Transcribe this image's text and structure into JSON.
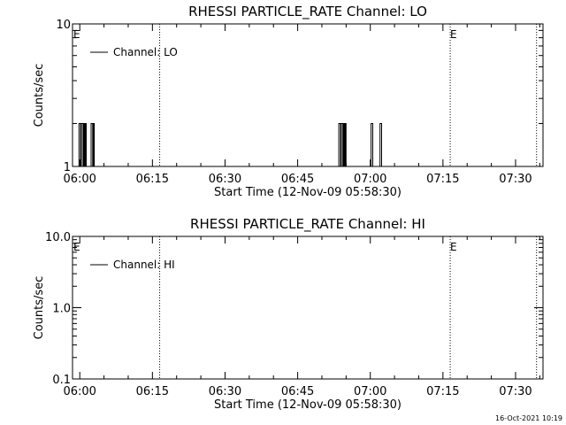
{
  "chart_data": [
    {
      "type": "line",
      "title": "RHESSI PARTICLE_RATE Channel: LO",
      "xlabel": "Start Time (12-Nov-09 05:58:30)",
      "ylabel": "Counts/sec",
      "yscale": "log",
      "xlim": [
        "05:58:30",
        "07:35:40"
      ],
      "ylim": [
        1,
        10
      ],
      "x_ticks": [
        "06:00",
        "06:15",
        "06:30",
        "06:45",
        "07:00",
        "07:15",
        "07:30"
      ],
      "y_ticks": [
        "1",
        "10"
      ],
      "legend": {
        "position": "top-left",
        "entries": [
          "Channel: LO"
        ]
      },
      "markers": [
        {
          "time": "05:58:30",
          "label": "E"
        },
        {
          "time": "06:16:30",
          "label": ""
        },
        {
          "time": "07:16:30",
          "label": "E"
        },
        {
          "time": "07:34:20",
          "label": ""
        }
      ],
      "series": [
        {
          "name": "Channel: LO",
          "points": [
            [
              "05:59:30",
              1
            ],
            [
              "05:59:50",
              2
            ],
            [
              "06:00:10",
              1
            ],
            [
              "06:00:20",
              2
            ],
            [
              "06:00:40",
              1
            ],
            [
              "06:00:50",
              2
            ],
            [
              "06:01:00",
              1
            ],
            [
              "06:01:10",
              2
            ],
            [
              "06:01:20",
              1
            ],
            [
              "06:02:10",
              1
            ],
            [
              "06:02:20",
              2
            ],
            [
              "06:02:40",
              1
            ],
            [
              "06:02:50",
              2
            ],
            [
              "06:03:00",
              1
            ],
            [
              "06:53:20",
              1
            ],
            [
              "06:53:30",
              2
            ],
            [
              "06:53:50",
              1
            ],
            [
              "06:54:00",
              2
            ],
            [
              "06:54:20",
              1
            ],
            [
              "06:54:30",
              2
            ],
            [
              "06:54:40",
              1
            ],
            [
              "06:54:50",
              2
            ],
            [
              "06:55:00",
              1
            ],
            [
              "07:00:00",
              1
            ],
            [
              "07:00:10",
              2
            ],
            [
              "07:00:30",
              1
            ],
            [
              "07:01:50",
              1
            ],
            [
              "07:02:00",
              2
            ],
            [
              "07:02:20",
              1
            ]
          ]
        }
      ]
    },
    {
      "type": "line",
      "title": "RHESSI PARTICLE_RATE Channel: HI",
      "xlabel": "Start Time (12-Nov-09 05:58:30)",
      "ylabel": "Counts/sec",
      "yscale": "log",
      "xlim": [
        "05:58:30",
        "07:35:40"
      ],
      "ylim": [
        0.1,
        10
      ],
      "x_ticks": [
        "06:00",
        "06:15",
        "06:30",
        "06:45",
        "07:00",
        "07:15",
        "07:30"
      ],
      "y_ticks": [
        "0.1",
        "1.0",
        "10.0"
      ],
      "legend": {
        "position": "top-left",
        "entries": [
          "Channel: HI"
        ]
      },
      "markers": [
        {
          "time": "05:58:30",
          "label": "E"
        },
        {
          "time": "06:16:30",
          "label": ""
        },
        {
          "time": "07:16:30",
          "label": "E"
        },
        {
          "time": "07:34:20",
          "label": ""
        }
      ],
      "series": [
        {
          "name": "Channel: HI",
          "points": []
        }
      ]
    }
  ],
  "footer": {
    "timestamp": "16-Oct-2021 10:19"
  }
}
